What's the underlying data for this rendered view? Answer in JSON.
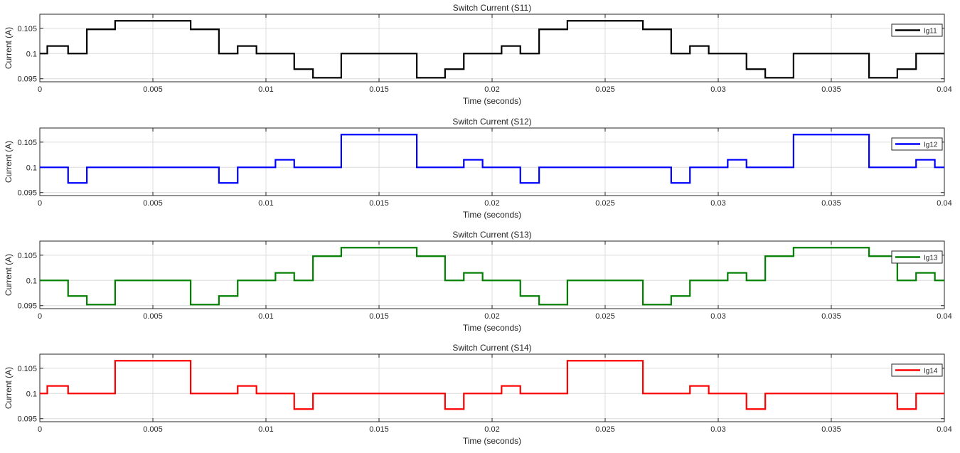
{
  "chart_data": [
    {
      "type": "line",
      "title": "Switch Current (S11)",
      "xlabel": "Time (seconds)",
      "ylabel": "Current (A)",
      "xlim": [
        0,
        0.04
      ],
      "ylim": [
        0.0944,
        0.1078
      ],
      "xticks": [
        0,
        0.005,
        0.01,
        0.015,
        0.02,
        0.025,
        0.03,
        0.035,
        0.04
      ],
      "xtick_labels": [
        "0",
        "0.005",
        "0.01",
        "0.015",
        "0.02",
        "0.025",
        "0.03",
        "0.035",
        "0.04"
      ],
      "yticks": [
        0.095,
        0.1,
        0.105
      ],
      "ytick_labels": [
        "0.095",
        "0.1",
        "0.105"
      ],
      "grid": true,
      "legend_position": "top-right",
      "series": [
        {
          "name": "Ig11",
          "color": "#000000",
          "step": true,
          "x": [
            0,
            0.00033,
            0.00125,
            0.00208,
            0.00333,
            0.00667,
            0.00792,
            0.00875,
            0.00958,
            0.01125,
            0.01208,
            0.01333,
            0.01667,
            0.01792,
            0.01875,
            0.02042,
            0.02125,
            0.02208,
            0.02333,
            0.02667,
            0.02792,
            0.02875,
            0.02958,
            0.03125,
            0.03208,
            0.03333,
            0.03667,
            0.03792,
            0.03875,
            0.04
          ],
          "y": [
            0.1,
            0.1015,
            0.1,
            0.1048,
            0.1065,
            0.1048,
            0.1,
            0.1015,
            0.1,
            0.0969,
            0.0952,
            0.1,
            0.0952,
            0.0969,
            0.1,
            0.1015,
            0.1,
            0.1048,
            0.1065,
            0.1048,
            0.1,
            0.1015,
            0.1,
            0.0969,
            0.0952,
            0.1,
            0.0952,
            0.0969,
            0.1,
            0.1
          ]
        }
      ]
    },
    {
      "type": "line",
      "title": "Switch Current (S12)",
      "xlabel": "Time (seconds)",
      "ylabel": "Current (A)",
      "xlim": [
        0,
        0.04
      ],
      "ylim": [
        0.0944,
        0.1078
      ],
      "xticks": [
        0,
        0.005,
        0.01,
        0.015,
        0.02,
        0.025,
        0.03,
        0.035,
        0.04
      ],
      "xtick_labels": [
        "0",
        "0.005",
        "0.01",
        "0.015",
        "0.02",
        "0.025",
        "0.03",
        "0.035",
        "0.04"
      ],
      "yticks": [
        0.095,
        0.1,
        0.105
      ],
      "ytick_labels": [
        "0.095",
        "0.1",
        "0.105"
      ],
      "grid": true,
      "legend_position": "top-right",
      "series": [
        {
          "name": "Ig12",
          "color": "#0000ff",
          "step": true,
          "x": [
            0,
            0.00125,
            0.00208,
            0.00792,
            0.00875,
            0.01042,
            0.01125,
            0.01333,
            0.01667,
            0.01875,
            0.01958,
            0.02125,
            0.02208,
            0.02792,
            0.02875,
            0.03042,
            0.03125,
            0.03333,
            0.03667,
            0.03875,
            0.03958,
            0.04
          ],
          "y": [
            0.1,
            0.0969,
            0.1,
            0.0969,
            0.1,
            0.1015,
            0.1,
            0.1065,
            0.1,
            0.1015,
            0.1,
            0.0969,
            0.1,
            0.0969,
            0.1,
            0.1015,
            0.1,
            0.1065,
            0.1,
            0.1015,
            0.1,
            0.1
          ]
        }
      ]
    },
    {
      "type": "line",
      "title": "Switch Current (S13)",
      "xlabel": "Time (seconds)",
      "ylabel": "Current (A)",
      "xlim": [
        0,
        0.04
      ],
      "ylim": [
        0.0944,
        0.1078
      ],
      "xticks": [
        0,
        0.005,
        0.01,
        0.015,
        0.02,
        0.025,
        0.03,
        0.035,
        0.04
      ],
      "xtick_labels": [
        "0",
        "0.005",
        "0.01",
        "0.015",
        "0.02",
        "0.025",
        "0.03",
        "0.035",
        "0.04"
      ],
      "yticks": [
        0.095,
        0.1,
        0.105
      ],
      "ytick_labels": [
        "0.095",
        "0.1",
        "0.105"
      ],
      "grid": true,
      "legend_position": "top-right",
      "series": [
        {
          "name": "Ig13",
          "color": "#007f00",
          "step": true,
          "x": [
            0,
            0.00125,
            0.00208,
            0.00333,
            0.00667,
            0.00792,
            0.00875,
            0.01042,
            0.01125,
            0.01208,
            0.01333,
            0.01667,
            0.01792,
            0.01875,
            0.01958,
            0.02125,
            0.02208,
            0.02333,
            0.02667,
            0.02792,
            0.02875,
            0.03042,
            0.03125,
            0.03208,
            0.03333,
            0.03667,
            0.03792,
            0.03875,
            0.03958,
            0.04
          ],
          "y": [
            0.1,
            0.0969,
            0.0952,
            0.1,
            0.0952,
            0.0969,
            0.1,
            0.1015,
            0.1,
            0.1048,
            0.1065,
            0.1048,
            0.1,
            0.1015,
            0.1,
            0.0969,
            0.0952,
            0.1,
            0.0952,
            0.0969,
            0.1,
            0.1015,
            0.1,
            0.1048,
            0.1065,
            0.1048,
            0.1,
            0.1015,
            0.1,
            0.1
          ]
        }
      ]
    },
    {
      "type": "line",
      "title": "Switch Current (S14)",
      "xlabel": "Time (seconds)",
      "ylabel": "Current (A)",
      "xlim": [
        0,
        0.04
      ],
      "ylim": [
        0.0944,
        0.1078
      ],
      "xticks": [
        0,
        0.005,
        0.01,
        0.015,
        0.02,
        0.025,
        0.03,
        0.035,
        0.04
      ],
      "xtick_labels": [
        "0",
        "0.005",
        "0.01",
        "0.015",
        "0.02",
        "0.025",
        "0.03",
        "0.035",
        "0.04"
      ],
      "yticks": [
        0.095,
        0.1,
        0.105
      ],
      "ytick_labels": [
        "0.095",
        "0.1",
        "0.105"
      ],
      "grid": true,
      "legend_position": "top-right",
      "series": [
        {
          "name": "Ig14",
          "color": "#ff0000",
          "step": true,
          "x": [
            0,
            0.00033,
            0.00125,
            0.00333,
            0.00667,
            0.00875,
            0.00958,
            0.01125,
            0.01208,
            0.01792,
            0.01875,
            0.02042,
            0.02125,
            0.02333,
            0.02667,
            0.02875,
            0.02958,
            0.03125,
            0.03208,
            0.03792,
            0.03875,
            0.04
          ],
          "y": [
            0.1,
            0.1015,
            0.1,
            0.1065,
            0.1,
            0.1015,
            0.1,
            0.0969,
            0.1,
            0.0969,
            0.1,
            0.1015,
            0.1,
            0.1065,
            0.1,
            0.1015,
            0.1,
            0.0969,
            0.1,
            0.0969,
            0.1,
            0.1
          ]
        }
      ]
    }
  ]
}
